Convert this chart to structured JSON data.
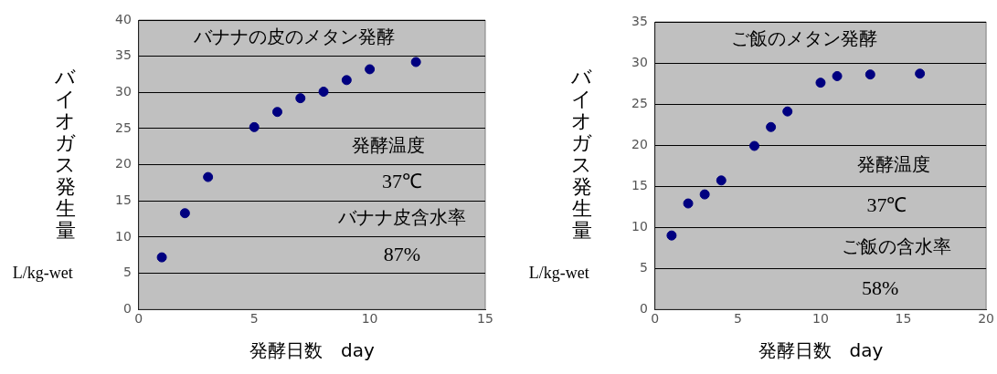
{
  "chart_data": [
    {
      "type": "scatter",
      "title": "バナナの皮のメタン発酵",
      "xlabel": "発酵日数　day",
      "ylabel": "バイオガス発生量 L/kg-wet",
      "x": [
        1,
        2,
        3,
        5,
        6,
        7,
        8,
        9,
        10,
        12
      ],
      "series": [
        {
          "color": "#000080",
          "values": [
            7.2,
            13.3,
            18.3,
            25.2,
            27.3,
            29.2,
            30.1,
            31.7,
            33.2,
            34.2
          ]
        }
      ],
      "xlim": [
        0,
        15
      ],
      "xticks": [
        0,
        5,
        10,
        15
      ],
      "ylim": [
        0,
        40
      ],
      "yticks": [
        0,
        5,
        10,
        15,
        20,
        25,
        30,
        35,
        40
      ],
      "grid": "y",
      "marker": "circle",
      "legend": false,
      "annotations": [
        "発酵温度",
        "37℃",
        "バナナ皮含水率",
        "87%"
      ]
    },
    {
      "type": "scatter",
      "title": "ご飯のメタン発酵",
      "xlabel": "発酵日数　day",
      "ylabel": "バイオガス発生量 L/kg-wet",
      "x": [
        1,
        2,
        3,
        4,
        6,
        7,
        8,
        10,
        11,
        13,
        16
      ],
      "series": [
        {
          "color": "#000080",
          "values": [
            9,
            12.9,
            14,
            15.7,
            19.9,
            22.2,
            24.1,
            27.6,
            28.4,
            28.6,
            28.7
          ]
        }
      ],
      "xlim": [
        0,
        20
      ],
      "xticks": [
        0,
        5,
        10,
        15,
        20
      ],
      "ylim": [
        0,
        35
      ],
      "yticks": [
        0,
        5,
        10,
        15,
        20,
        25,
        30,
        35
      ],
      "grid": "y",
      "marker": "circle",
      "legend": false,
      "annotations": [
        "発酵温度",
        "37℃",
        "ご飯の含水率",
        "58%"
      ]
    }
  ]
}
